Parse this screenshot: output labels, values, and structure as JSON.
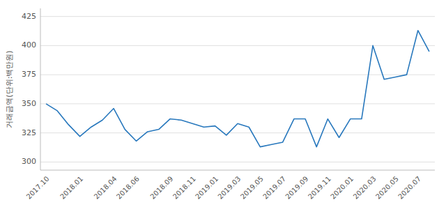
{
  "chart_data": {
    "type": "line",
    "y_label": "거래금액(단위:백만원)",
    "categories": [
      "2017.10",
      null,
      null,
      "2018.01",
      null,
      null,
      "2018.04",
      null,
      "2018.06",
      null,
      null,
      "2018.09",
      null,
      "2018.11",
      null,
      "2019.01",
      null,
      "2019.03",
      null,
      "2019.05",
      null,
      "2019.07",
      null,
      "2019.09",
      null,
      "2019.11",
      null,
      "2020.01",
      null,
      "2020.03",
      null,
      "2020.05",
      null,
      "2020.07",
      null
    ],
    "values": [
      350,
      344,
      332,
      322,
      330,
      336,
      346,
      328,
      318,
      326,
      328,
      337,
      336,
      333,
      330,
      331,
      323,
      333,
      330,
      313,
      315,
      317,
      337,
      337,
      313,
      337,
      321,
      337,
      337,
      400,
      371,
      373,
      375,
      413,
      395
    ],
    "color": "#2878bd",
    "ylim": [
      293,
      432
    ],
    "yticks": [
      300,
      325,
      350,
      375,
      400,
      425
    ],
    "grid": true
  }
}
